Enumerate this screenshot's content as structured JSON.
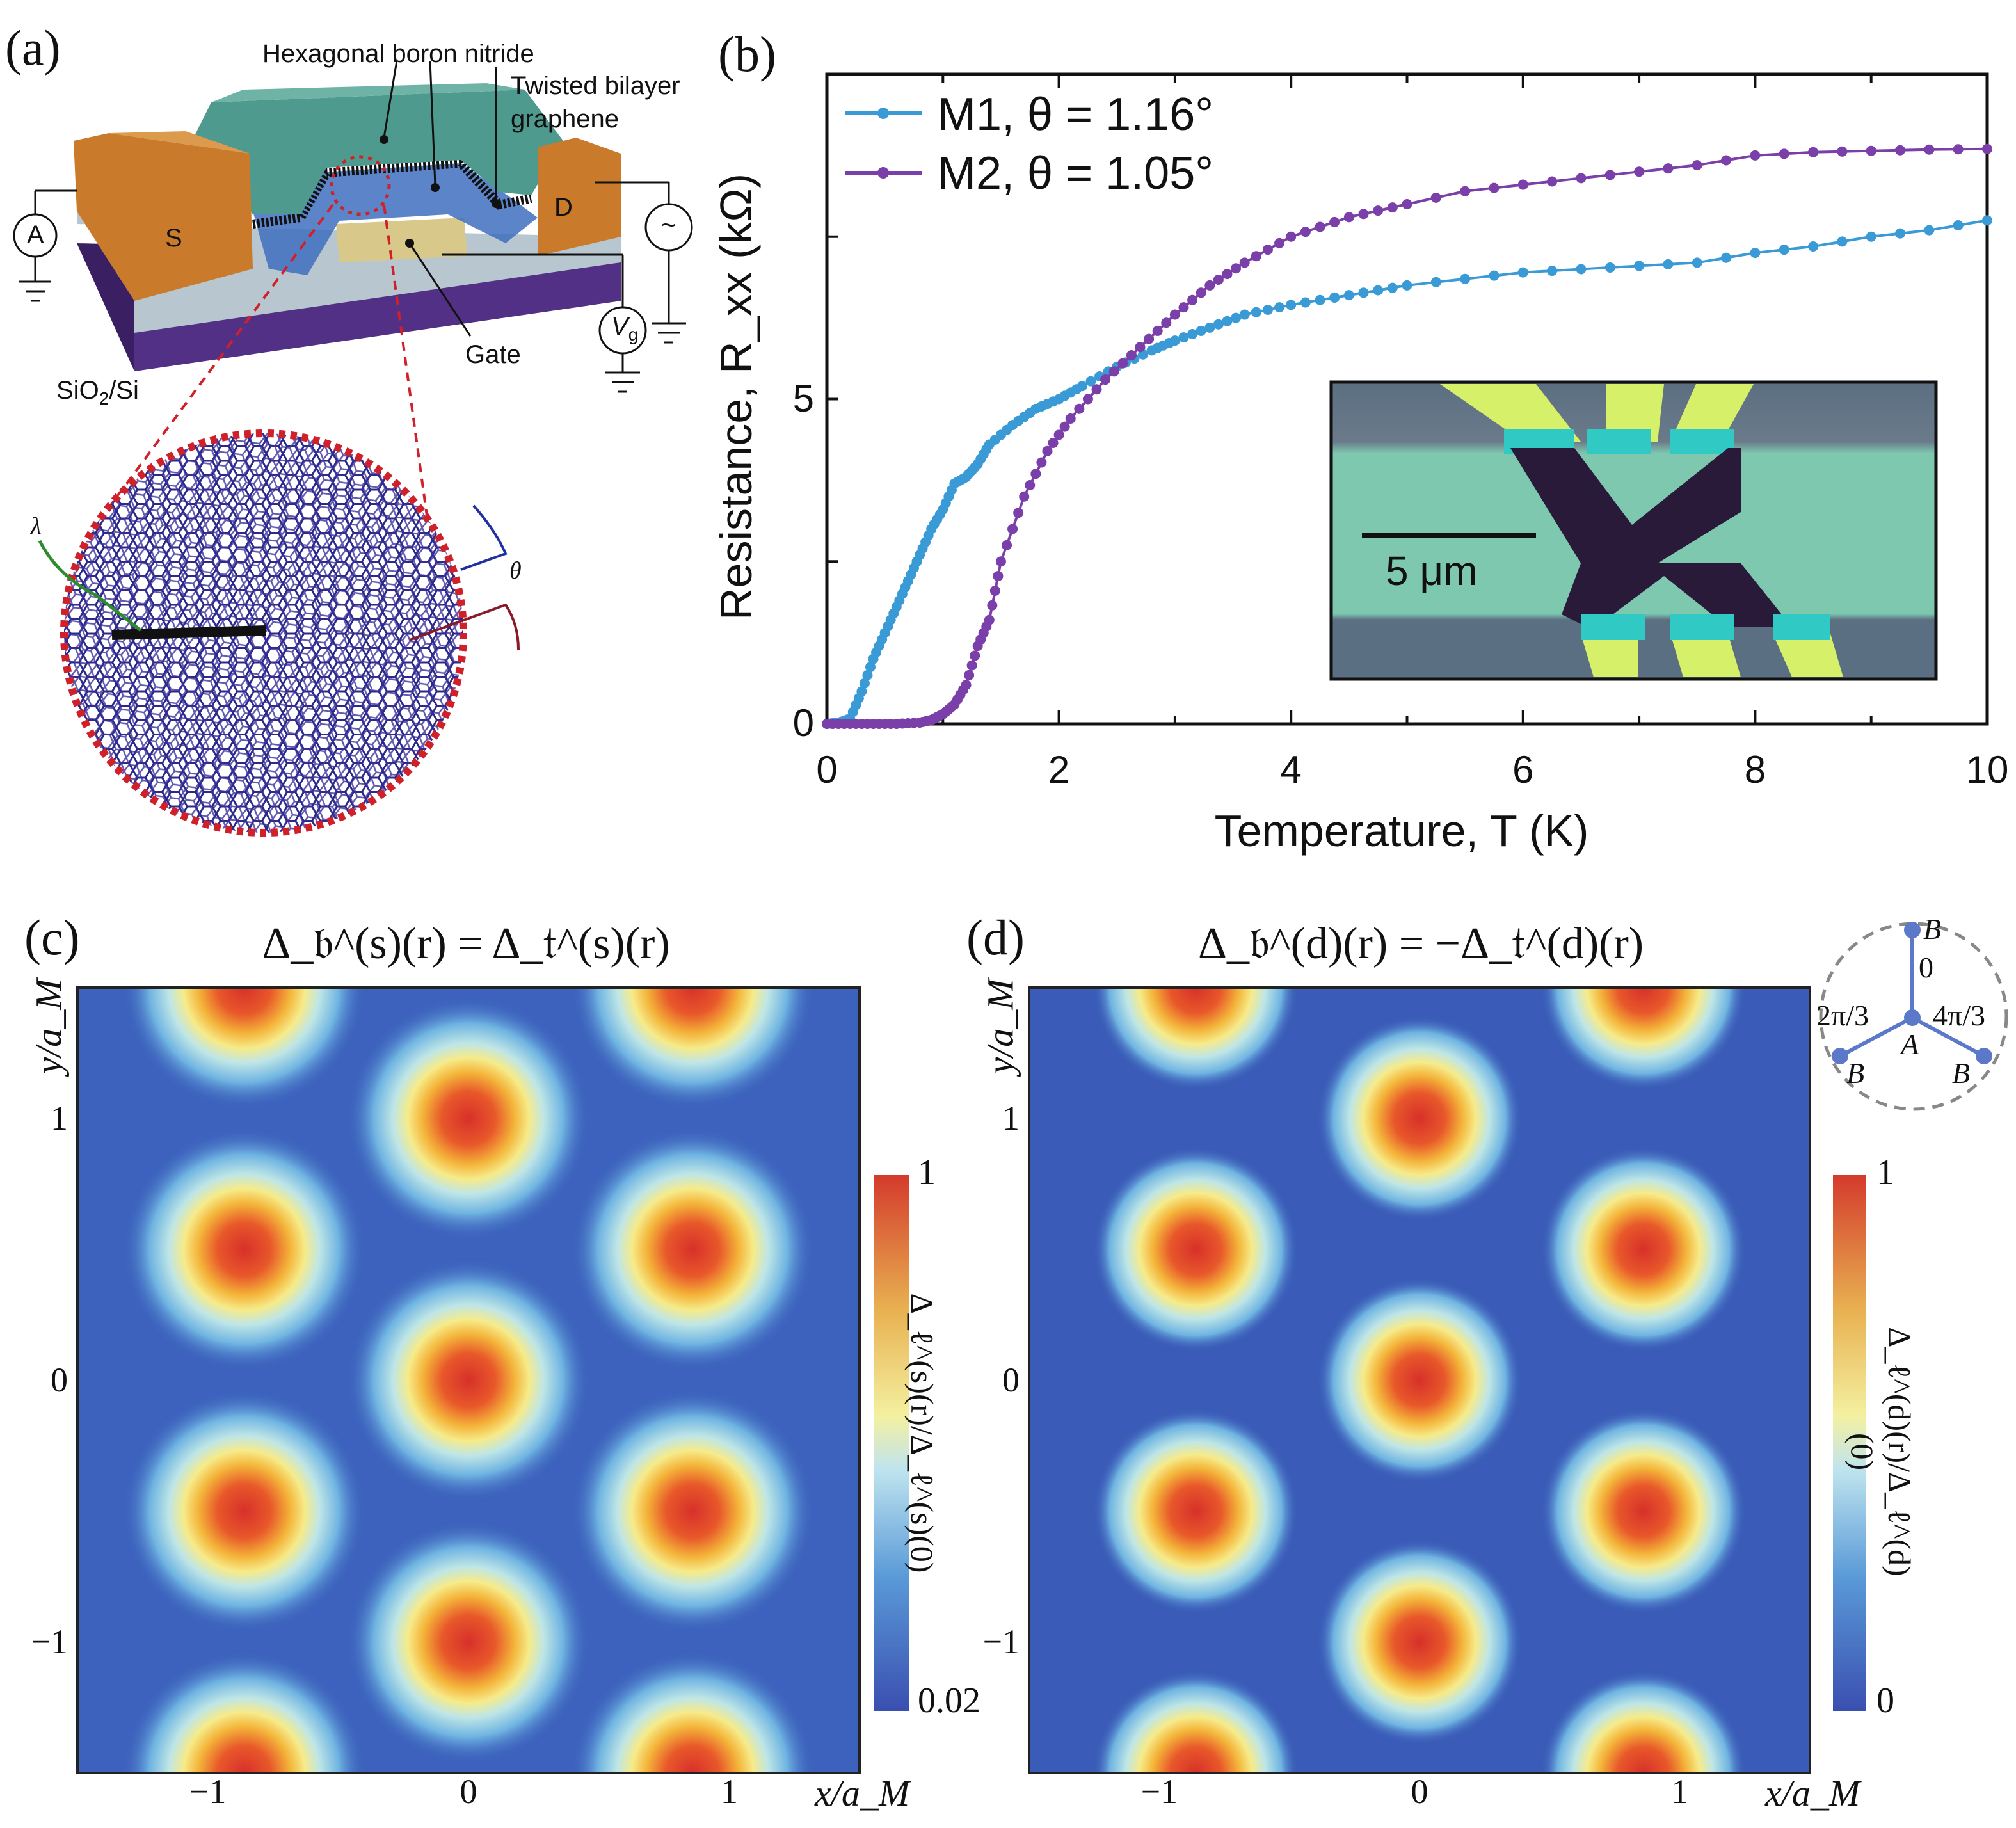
{
  "panel_a": {
    "label": "(a)",
    "hbn_label": "Hexagonal boron nitride",
    "tbg_label_line1": "Twisted bilayer",
    "tbg_label_line2": "graphene",
    "source_label": "S",
    "drain_label": "D",
    "ammeter_label": "A",
    "ac_source_label": "~",
    "gate_voltage_label": "V",
    "gate_voltage_sub": "g",
    "gate_label": "Gate",
    "substrate_label": "SiO",
    "substrate_sub": "2",
    "substrate_suffix": "/Si",
    "lambda_label": "λ",
    "theta_label": "θ",
    "colors": {
      "hbn": "#4f9a8f",
      "contact": "#c97a2a",
      "gate": "#d8c98a",
      "substrate": "#4a2a78",
      "oxide": "#b8c6cf",
      "moire_lines": "#2b2a8a",
      "zoom_outline": "#d0202a"
    }
  },
  "chart_data": [
    {
      "panel": "(b)",
      "type": "line",
      "xlabel": "Temperature, T (K)",
      "ylabel": "Resistance, R_xx (kΩ)",
      "xlim": [
        0,
        10
      ],
      "ylim": [
        0,
        10
      ],
      "xticks": [
        "0",
        "2",
        "4",
        "6",
        "8",
        "10"
      ],
      "yticks": [
        "0",
        "5"
      ],
      "grid": false,
      "legend_position": "top-left",
      "inset": {
        "type": "optical micrograph",
        "scale_bar_label": "5 μm"
      },
      "series": [
        {
          "name": "M1, θ = 1.16°",
          "color": "#3a9ad6",
          "x": [
            0,
            0.1,
            0.2,
            0.3,
            0.4,
            0.5,
            0.6,
            0.7,
            0.8,
            0.9,
            1.0,
            1.1,
            1.2,
            1.3,
            1.4,
            1.6,
            1.8,
            2.0,
            2.2,
            2.5,
            2.8,
            3.0,
            3.3,
            3.6,
            4.0,
            4.5,
            5.0,
            5.5,
            6.0,
            6.5,
            7.0,
            7.5,
            8.0,
            8.5,
            9.0,
            9.5,
            10
          ],
          "y": [
            0,
            0.02,
            0.08,
            0.5,
            1.0,
            1.4,
            1.8,
            2.2,
            2.6,
            3.0,
            3.3,
            3.7,
            3.8,
            4.0,
            4.3,
            4.6,
            4.85,
            5.0,
            5.2,
            5.5,
            5.75,
            5.9,
            6.1,
            6.3,
            6.45,
            6.6,
            6.75,
            6.85,
            6.95,
            7.0,
            7.05,
            7.1,
            7.25,
            7.35,
            7.5,
            7.6,
            7.75
          ]
        },
        {
          "name": "M2, θ = 1.05°",
          "color": "#7a3fa8",
          "x": [
            0,
            0.2,
            0.4,
            0.6,
            0.8,
            0.9,
            1.0,
            1.1,
            1.2,
            1.3,
            1.4,
            1.5,
            1.7,
            1.9,
            2.1,
            2.4,
            2.7,
            3.0,
            3.3,
            3.6,
            4.0,
            4.5,
            5.0,
            5.5,
            6.0,
            6.5,
            7.0,
            7.5,
            8.0,
            8.5,
            9.0,
            9.5,
            10
          ],
          "y": [
            0,
            0,
            0,
            0,
            0.02,
            0.06,
            0.15,
            0.3,
            0.6,
            1.2,
            1.6,
            2.5,
            3.5,
            4.2,
            4.7,
            5.3,
            5.8,
            6.3,
            6.75,
            7.1,
            7.5,
            7.8,
            8.0,
            8.2,
            8.3,
            8.4,
            8.5,
            8.6,
            8.75,
            8.8,
            8.82,
            8.84,
            8.85
          ]
        }
      ]
    },
    {
      "panel": "(c)",
      "type": "heatmap",
      "title": "Δ_𝔟^(s)(r) = Δ_𝔱^(s)(r)",
      "xlabel": "x/a_M",
      "ylabel": "y/a_M",
      "xlim": [
        -1.5,
        1.5
      ],
      "ylim": [
        -1.5,
        1.5
      ],
      "xticks": [
        "−1",
        "0",
        "1"
      ],
      "yticks": [
        "1",
        "0",
        "−1"
      ],
      "colorbar": {
        "label": "Δ_ℓ^(s)(r)/Δ_ℓ^(s)(0)",
        "min": 0.02,
        "max": 1,
        "min_label": "0.02",
        "max_label": "1",
        "colormap": "jet-like"
      },
      "peaks": [
        [
          -0.86,
          1.5
        ],
        [
          0.86,
          1.5
        ],
        [
          0,
          1
        ],
        [
          -0.86,
          0.5
        ],
        [
          0.86,
          0.5
        ],
        [
          0,
          0
        ],
        [
          -0.86,
          -0.5
        ],
        [
          0.86,
          -0.5
        ],
        [
          0,
          -1
        ],
        [
          -0.86,
          -1.5
        ],
        [
          0.86,
          -1.5
        ]
      ],
      "peak_value": 1
    },
    {
      "panel": "(d)",
      "type": "heatmap",
      "title": "Δ_𝔟^(d)(r) = −Δ_𝔱^(d)(r)",
      "xlabel": "x/a_M",
      "ylabel": "y/a_M",
      "xlim": [
        -1.5,
        1.5
      ],
      "ylim": [
        -1.5,
        1.5
      ],
      "xticks": [
        "−1",
        "0",
        "1"
      ],
      "yticks": [
        "1",
        "0",
        "−1"
      ],
      "colorbar": {
        "label": "Δ_ℓ^(d)(r)/Δ_ℓ^(d)(0)",
        "min": 0,
        "max": 1,
        "min_label": "0",
        "max_label": "1",
        "colormap": "jet-like"
      },
      "peaks": [
        [
          -0.86,
          1.5
        ],
        [
          0.86,
          1.5
        ],
        [
          0,
          1
        ],
        [
          -0.86,
          0.5
        ],
        [
          0.86,
          0.5
        ],
        [
          0,
          0
        ],
        [
          -0.86,
          -0.5
        ],
        [
          0.86,
          -0.5
        ],
        [
          0,
          -1
        ],
        [
          -0.86,
          -1.5
        ],
        [
          0.86,
          -1.5
        ]
      ],
      "peak_value": 1,
      "inset": {
        "center": "A",
        "neighbors": [
          "B",
          "B",
          "B"
        ],
        "phases": [
          "0",
          "2π/3",
          "4π/3"
        ]
      }
    }
  ]
}
